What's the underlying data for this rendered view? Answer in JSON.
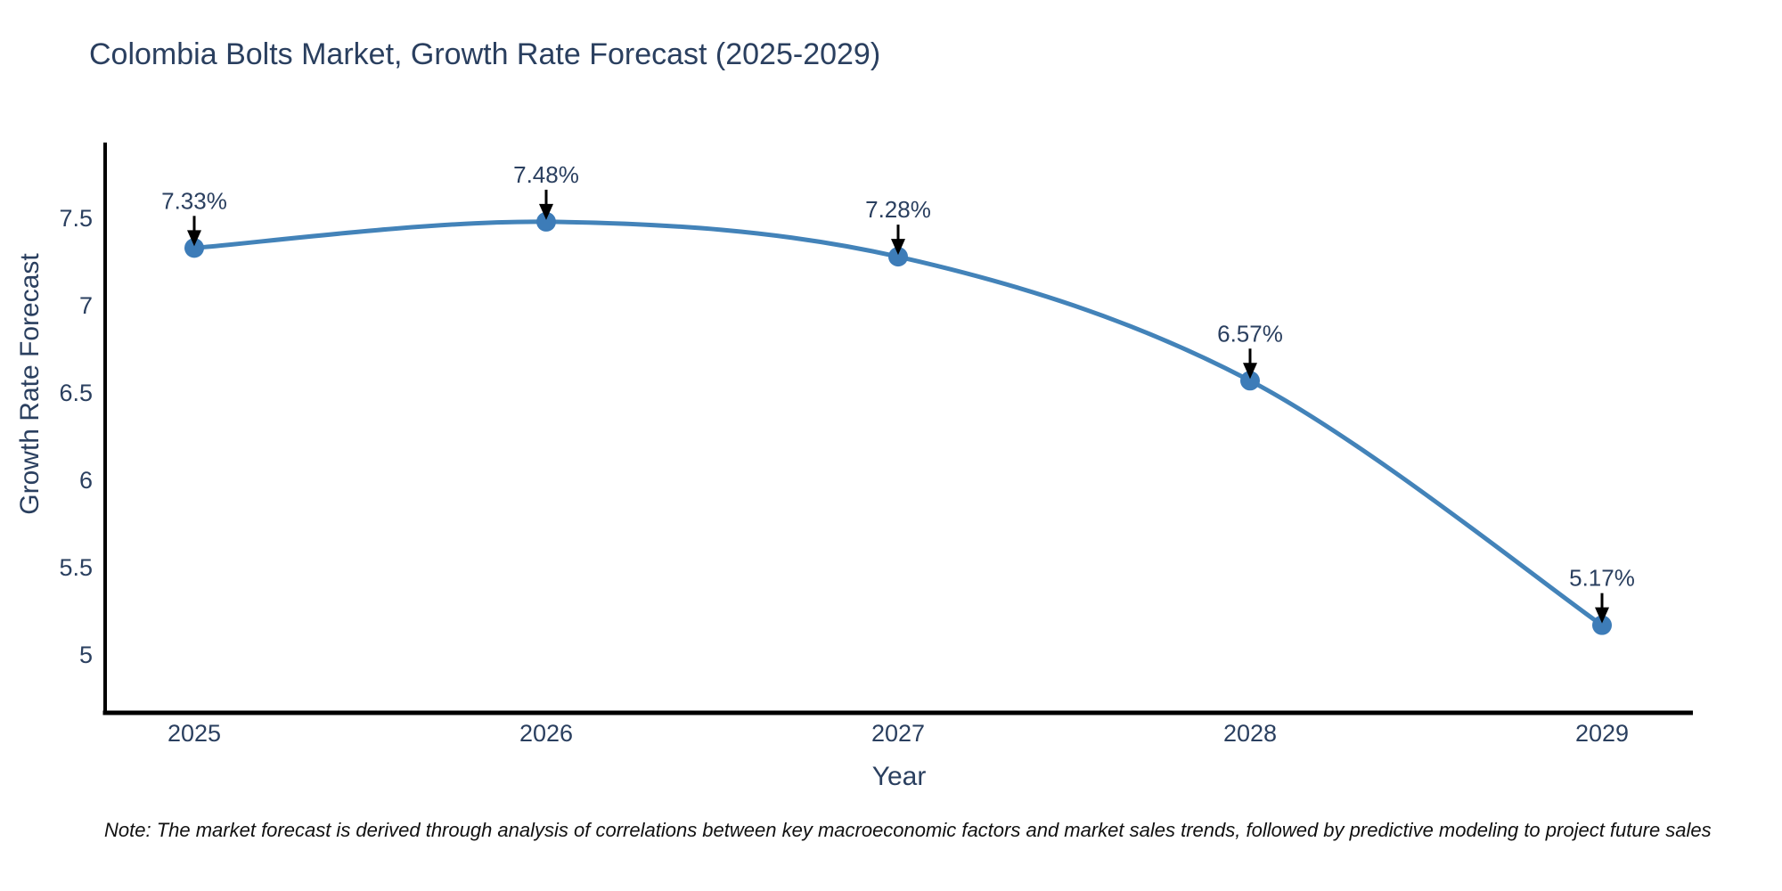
{
  "chart_data": {
    "type": "line",
    "title": "Colombia Bolts Market, Growth Rate Forecast (2025-2029)",
    "xlabel": "Year",
    "ylabel": "Growth Rate Forecast",
    "x": [
      2025,
      2026,
      2027,
      2028,
      2029
    ],
    "series": [
      {
        "name": "Growth Rate Forecast",
        "values": [
          7.33,
          7.48,
          7.28,
          6.57,
          5.17
        ]
      }
    ],
    "point_labels": [
      "7.33%",
      "7.48%",
      "7.28%",
      "6.57%",
      "5.17%"
    ],
    "xticks": [
      "2025",
      "2026",
      "2027",
      "2028",
      "2029"
    ],
    "yticks": [
      "5",
      "5.5",
      "6",
      "6.5",
      "7",
      "7.5"
    ],
    "ytick_values": [
      5,
      5.5,
      6,
      6.5,
      7,
      7.5
    ],
    "ylim": [
      4.67,
      7.95
    ],
    "xlim": [
      2024.74,
      2029.26
    ],
    "grid": false,
    "legend": "none",
    "line_shape": "spline",
    "note": "Note: The market forecast is derived through analysis of correlations between key macroeconomic factors and market sales trends, followed by predictive modeling to project future sales",
    "colors": {
      "line": "#4383b9",
      "marker": "#3d7cb8",
      "text": "#2a3f5f",
      "axis": "#000000",
      "arrow": "#000000",
      "note_text": "#111111",
      "background": "#ffffff"
    }
  }
}
